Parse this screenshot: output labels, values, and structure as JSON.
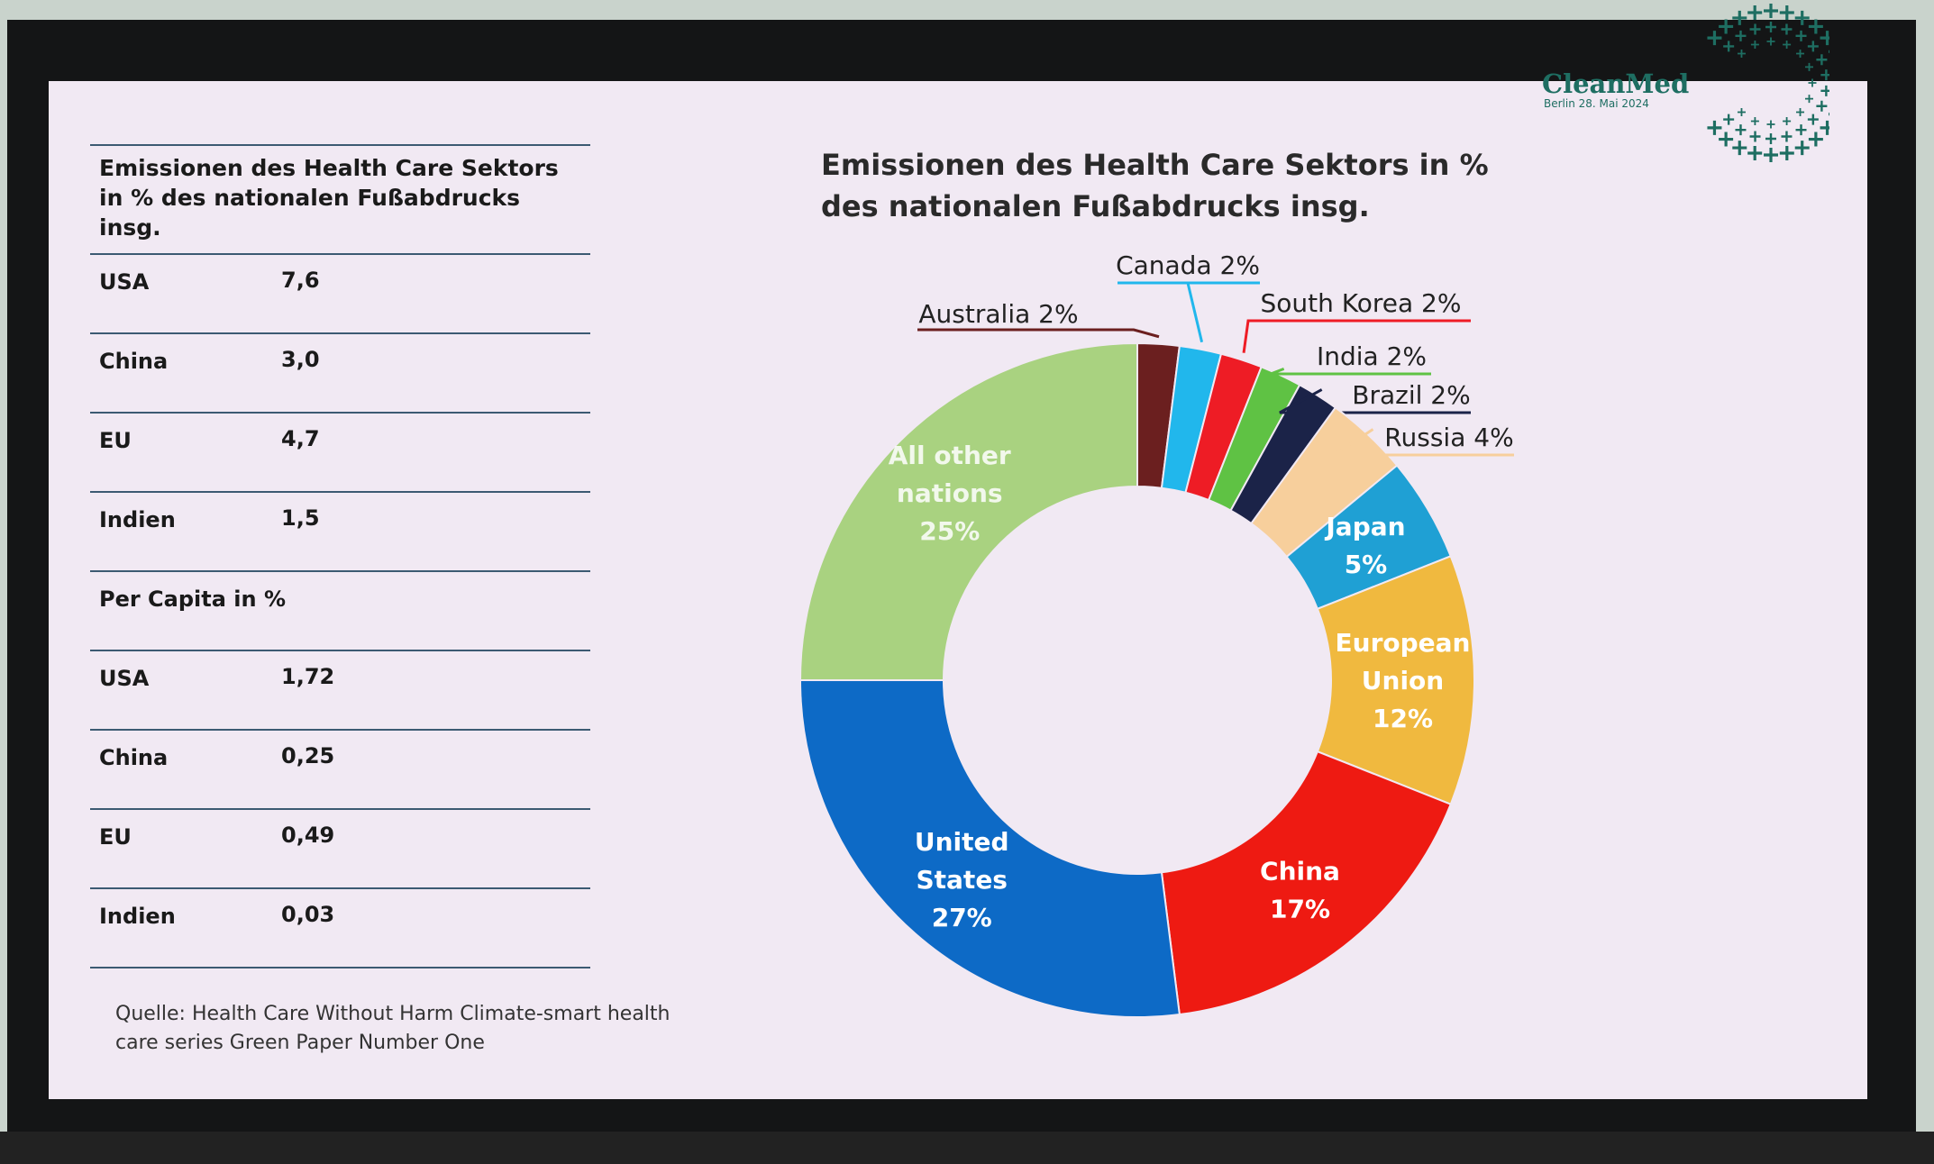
{
  "slide": {
    "table": {
      "title": "Emissionen des Health Care Sektors in % des nationalen Fußabdrucks insg.",
      "rows": [
        {
          "label": "USA",
          "value": "7,6"
        },
        {
          "label": "China",
          "value": "3,0"
        },
        {
          "label": "EU",
          "value": "4,7"
        },
        {
          "label": "Indien",
          "value": "1,5"
        }
      ],
      "subheader": "Per Capita in %",
      "per_capita_rows": [
        {
          "label": "USA",
          "value": "1,72"
        },
        {
          "label": "China",
          "value": "0,25"
        },
        {
          "label": "EU",
          "value": "0,49"
        },
        {
          "label": "Indien",
          "value": "0,03"
        }
      ]
    },
    "source": "Quelle: Health Care Without Harm Climate-smart health care  series Green Paper Number One",
    "logo": {
      "name": "CleanMed",
      "subtitle": "Berlin 28. Mai 2024",
      "color": "#1e6e62"
    }
  },
  "chart_data": {
    "type": "pie",
    "title": "Emissionen des Health Care Sektors in % des nationalen Fußabdrucks insg.",
    "donut": true,
    "series": [
      {
        "name": "Australia",
        "value": 2,
        "label": "Australia 2%",
        "color": "#6b1f1f",
        "label_position": "outside"
      },
      {
        "name": "Canada",
        "value": 2,
        "label": "Canada 2%",
        "color": "#21b7ec",
        "label_position": "outside"
      },
      {
        "name": "South Korea",
        "value": 2,
        "label": "South Korea 2%",
        "color": "#ee1c25",
        "label_position": "outside"
      },
      {
        "name": "India",
        "value": 2,
        "label": "India 2%",
        "color": "#5fc244",
        "label_position": "outside"
      },
      {
        "name": "Brazil",
        "value": 2,
        "label": "Brazil 2%",
        "color": "#1b2348",
        "label_position": "outside"
      },
      {
        "name": "Russia",
        "value": 4,
        "label": "Russia 4%",
        "color": "#f7cf9c",
        "label_position": "outside"
      },
      {
        "name": "Japan",
        "value": 5,
        "label_lines": [
          "Japan",
          "5%"
        ],
        "color": "#1fa0d4",
        "label_position": "inside"
      },
      {
        "name": "European Union",
        "value": 12,
        "label_lines": [
          "European",
          "Union",
          "12%"
        ],
        "color": "#f0b93f",
        "label_position": "inside"
      },
      {
        "name": "China",
        "value": 17,
        "label_lines": [
          "China",
          "17%"
        ],
        "color": "#ee1a12",
        "label_position": "inside"
      },
      {
        "name": "United States",
        "value": 27,
        "label_lines": [
          "United",
          "States",
          "27%"
        ],
        "color": "#0d6ac6",
        "label_position": "inside"
      },
      {
        "name": "All other nations",
        "value": 25,
        "label_lines": [
          "All other",
          "nations",
          "25%"
        ],
        "color": "#a9d280",
        "label_position": "inside"
      }
    ]
  }
}
